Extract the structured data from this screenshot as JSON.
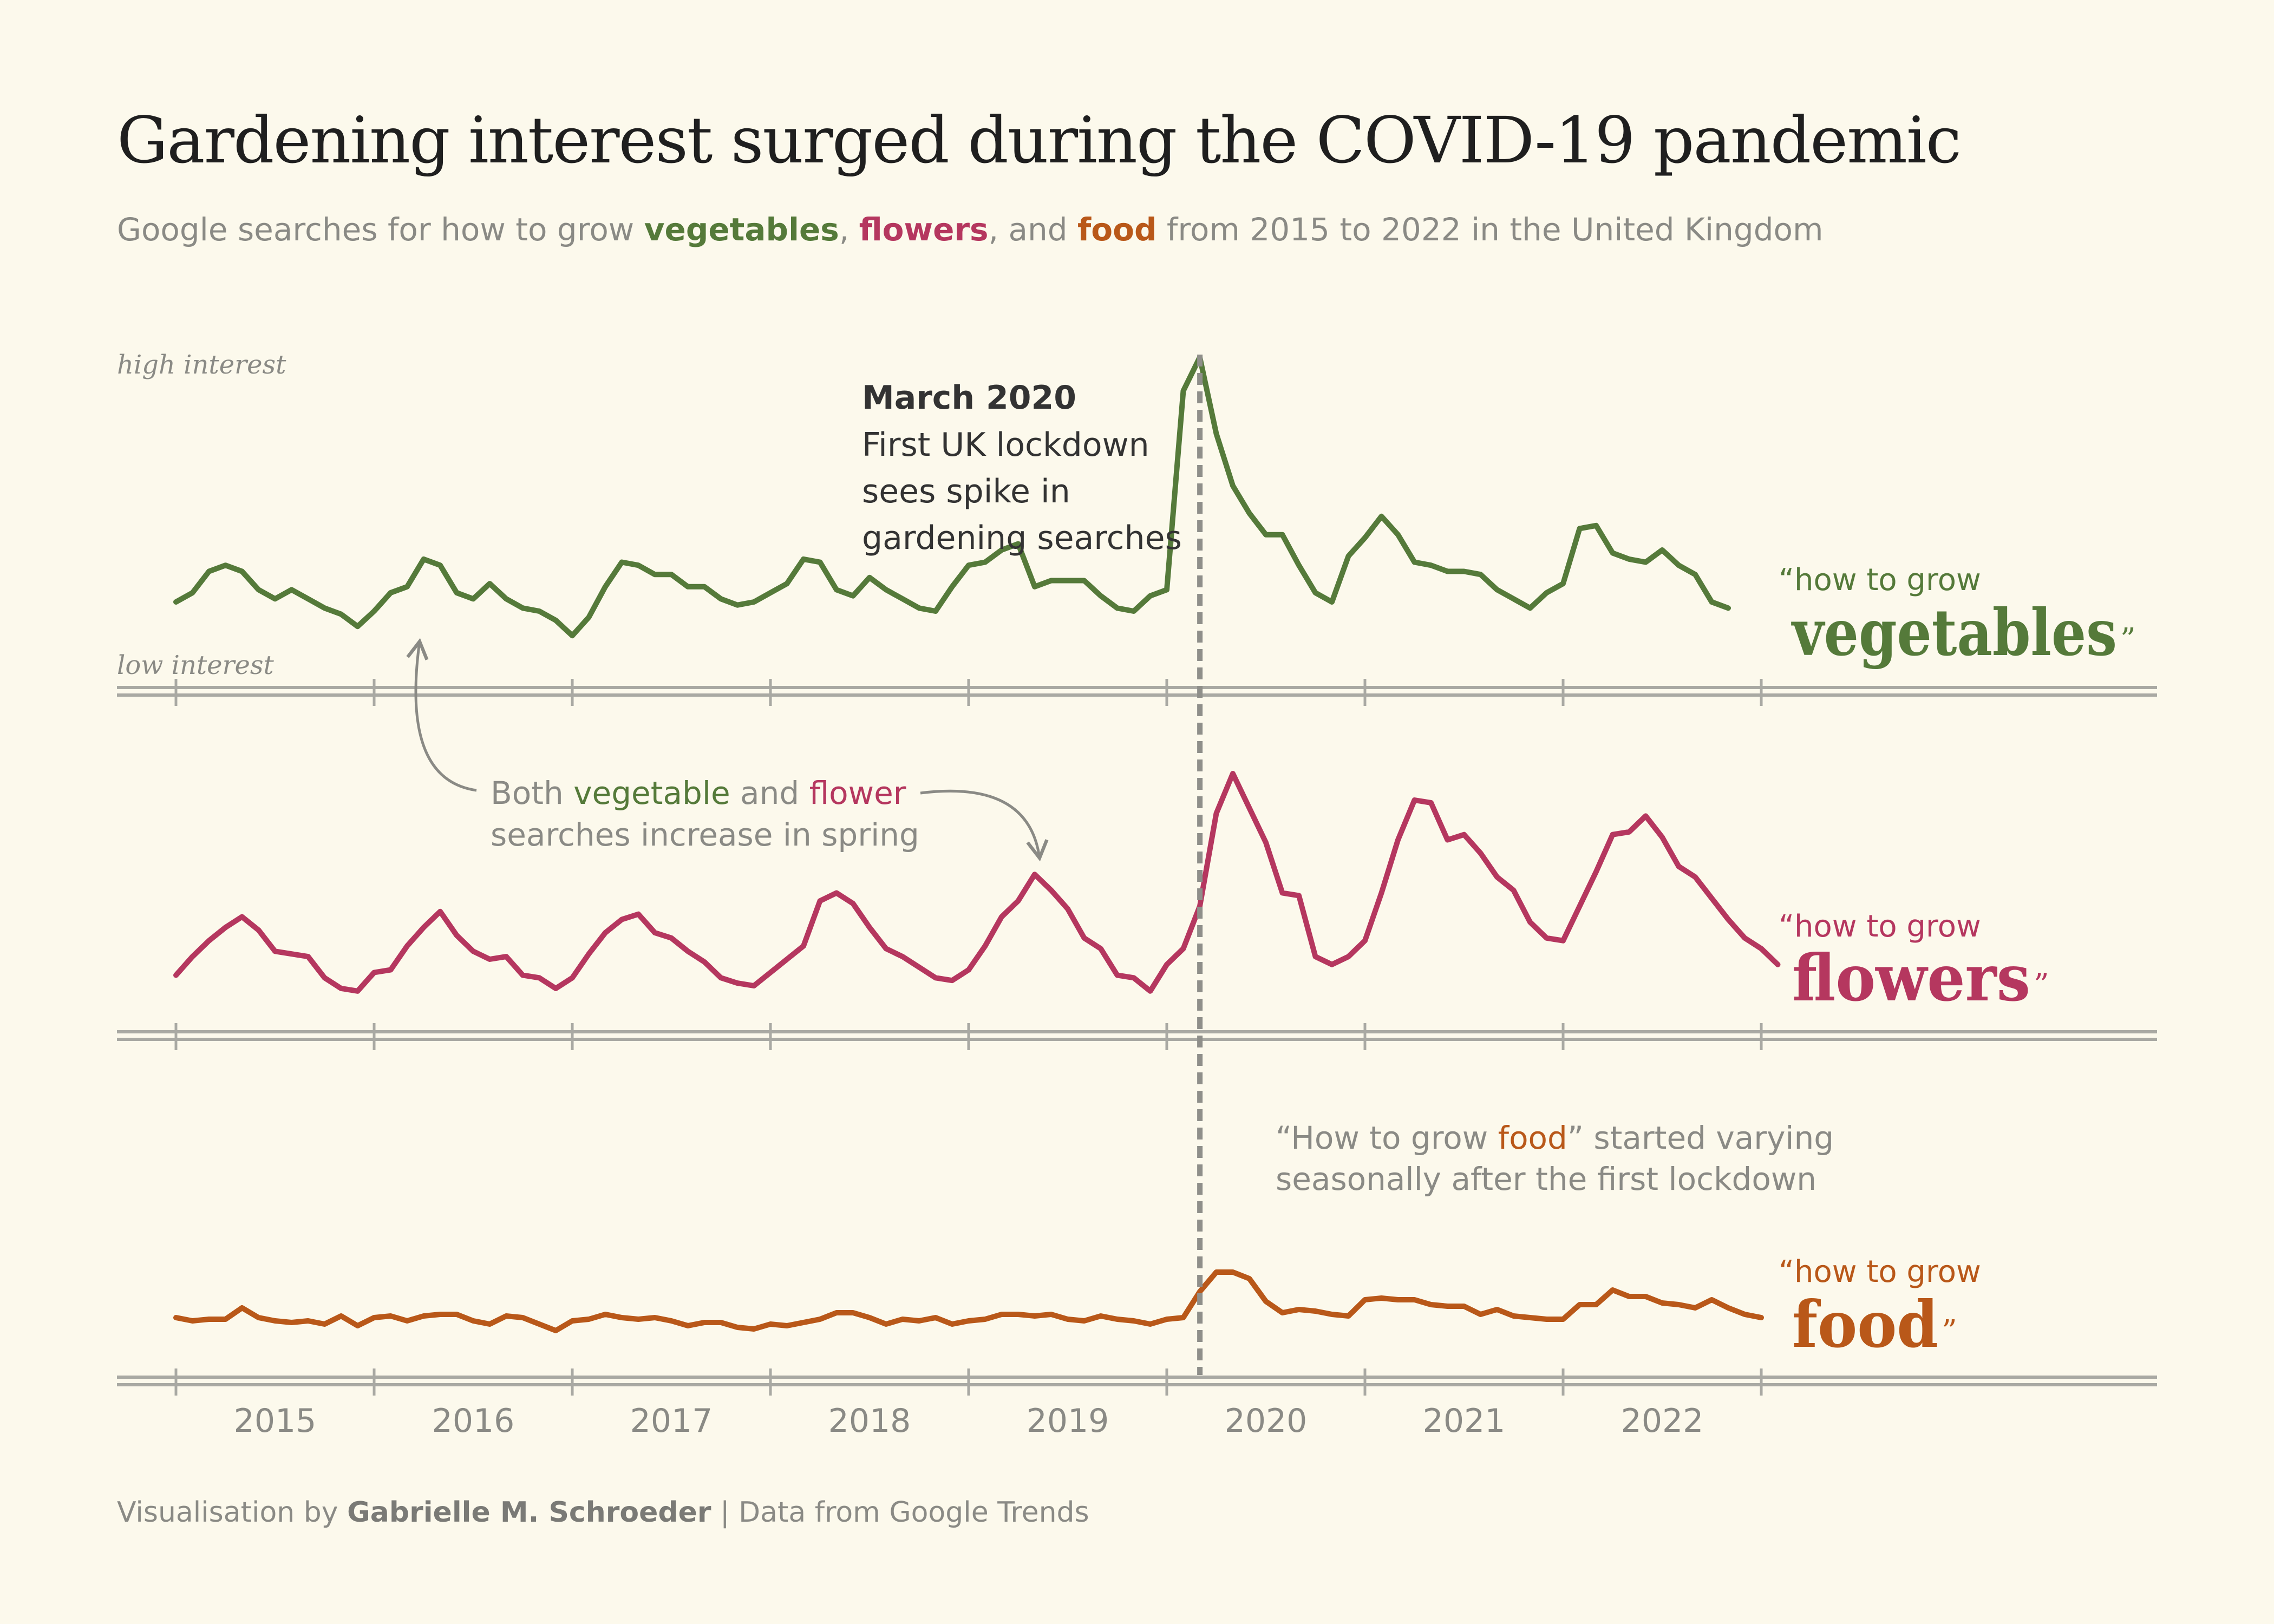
{
  "title": "Gardening interest surged during the COVID-19 pandemic",
  "subtitle": {
    "prefix": "Google searches for how to grow ",
    "kw1": "vegetables",
    "sep1": ", ",
    "kw2": "flowers",
    "sep2": ", and ",
    "kw3": "food",
    "suffix": " from 2015 to 2022 in the United Kingdom"
  },
  "axis_labels": {
    "high": "high interest",
    "low": "low interest"
  },
  "annotations": {
    "lockdown_title": "March 2020",
    "lockdown_lines": [
      "First UK lockdown",
      "sees spike in",
      "gardening searches"
    ],
    "spring_line1": {
      "a": "Both ",
      "b": "vegetable",
      "c": " and ",
      "d": "flower"
    },
    "spring_line2": "searches increase in spring",
    "food_line1": {
      "a": "“How to grow ",
      "b": "food",
      "c": "” started varying"
    },
    "food_line2": "seasonally after the first lockdown"
  },
  "series_labels": {
    "prefix": "“how to grow",
    "vegetables": "vegetables",
    "flowers": "flowers",
    "food": "food",
    "close": "”"
  },
  "footer": {
    "a": "Visualisation by ",
    "author": "Gabrielle M. Schroeder",
    "sep": " | ",
    "source": "Data from Google Trends"
  },
  "colors": {
    "background": "#fcf9ec",
    "vegetables": "#557a3a",
    "flowers": "#b5375f",
    "food": "#b95819",
    "axis": "#a9a9a3",
    "text_muted": "#8a8a85",
    "lockdown_line": "#8f8f8a"
  },
  "chart_data": {
    "type": "line",
    "title": "Gardening interest surged during the COVID-19 pandemic",
    "subtitle": "Google searches for how to grow vegetables, flowers, and food from 2015 to 2022 in the United Kingdom",
    "x_ticks": [
      "2015",
      "2016",
      "2017",
      "2018",
      "2019",
      "2020",
      "2021",
      "2022"
    ],
    "x_range": [
      2015.0,
      2023.0
    ],
    "y_range": [
      0,
      100
    ],
    "x_start": 2015.0,
    "x_step_months": 1,
    "event": {
      "x": 2020.167,
      "label": "March 2020"
    },
    "ylabel_high": "high interest",
    "ylabel_low": "low interest",
    "series": [
      {
        "name": "vegetables",
        "values": [
          20,
          23,
          30,
          32,
          30,
          24,
          21,
          24,
          21,
          18,
          16,
          12,
          17,
          23,
          25,
          34,
          32,
          23,
          21,
          26,
          21,
          18,
          17,
          14,
          9,
          15,
          25,
          33,
          32,
          29,
          29,
          25,
          25,
          21,
          19,
          20,
          23,
          26,
          34,
          33,
          24,
          22,
          28,
          24,
          21,
          18,
          17,
          25,
          32,
          33,
          37,
          39,
          25,
          27,
          27,
          27,
          22,
          18,
          17,
          22,
          24,
          89,
          100,
          75,
          58,
          49,
          42,
          42,
          32,
          23,
          20,
          35,
          41,
          48,
          42,
          33,
          32,
          30,
          30,
          29,
          24,
          21,
          18,
          23,
          26,
          44,
          45,
          36,
          34,
          33,
          37,
          32,
          29,
          20,
          18
        ]
      },
      {
        "name": "flowers",
        "values": [
          14,
          21,
          27,
          32,
          36,
          31,
          23,
          22,
          21,
          13,
          9,
          8,
          15,
          16,
          25,
          32,
          38,
          29,
          23,
          20,
          21,
          14,
          13,
          9,
          13,
          22,
          30,
          35,
          37,
          30,
          28,
          23,
          19,
          13,
          11,
          10,
          15,
          20,
          25,
          42,
          45,
          41,
          32,
          24,
          21,
          17,
          13,
          12,
          16,
          25,
          36,
          42,
          52,
          46,
          39,
          28,
          24,
          14,
          13,
          8,
          18,
          24,
          40,
          75,
          90,
          77,
          64,
          45,
          44,
          21,
          18,
          21,
          27,
          45,
          65,
          80,
          79,
          65,
          67,
          60,
          51,
          46,
          34,
          28,
          27,
          40,
          53,
          67,
          68,
          74,
          66,
          55,
          51,
          43,
          35,
          28,
          24,
          18
        ]
      },
      {
        "name": "food",
        "values": [
          22,
          20,
          21,
          21,
          28,
          22,
          20,
          19,
          20,
          18,
          23,
          17,
          22,
          23,
          20,
          23,
          24,
          24,
          20,
          18,
          23,
          22,
          18,
          14,
          20,
          21,
          24,
          22,
          21,
          22,
          20,
          17,
          19,
          19,
          16,
          15,
          18,
          17,
          19,
          21,
          25,
          25,
          22,
          18,
          21,
          20,
          22,
          18,
          20,
          21,
          24,
          24,
          23,
          24,
          21,
          20,
          23,
          21,
          20,
          18,
          21,
          22,
          38,
          50,
          50,
          46,
          32,
          25,
          27,
          26,
          24,
          23,
          33,
          34,
          33,
          33,
          30,
          29,
          29,
          24,
          27,
          23,
          22,
          21,
          21,
          30,
          30,
          39,
          35,
          35,
          31,
          30,
          28,
          33,
          28,
          24,
          22
        ]
      }
    ]
  }
}
